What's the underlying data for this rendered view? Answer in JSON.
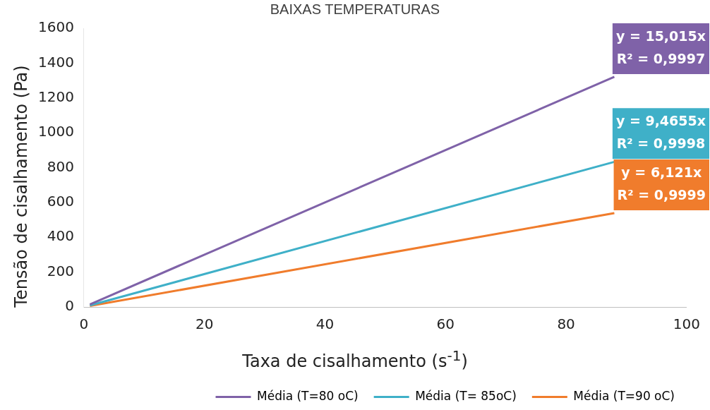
{
  "chart_data": {
    "type": "line",
    "title": "BAIXAS TEMPERATURAS",
    "xlabel": "Taxa de cisalhamento (s$^{-1}$)",
    "ylabel": "Tensão de cisalhamento (Pa)",
    "x": [
      1,
      88
    ],
    "series": [
      {
        "name": "Média (T=80 oC)",
        "color": "#7f62a8",
        "values": [
          15,
          1321
        ]
      },
      {
        "name": "Média (T= 85oC)",
        "color": "#3fb0c8",
        "values": [
          9,
          833
        ]
      },
      {
        "name": "Média (T=90 oC)",
        "color": "#f07c2c",
        "values": [
          6,
          539
        ]
      }
    ],
    "xlim": [
      0,
      100
    ],
    "xticks": [
      0,
      20,
      40,
      60,
      80,
      100
    ],
    "ylim": [
      0,
      1600
    ],
    "yticks": [
      0,
      200,
      400,
      600,
      800,
      1000,
      1200,
      1400,
      1600
    ],
    "grid": false,
    "legend": "bottom",
    "marker": "none",
    "line_style": "solid",
    "annotations": [
      "y = 15,015x\nR² = 0,9997",
      "y = 9,4655x\nR² = 0,9998",
      "y = 6,121x\nR² = 0,9999"
    ]
  }
}
